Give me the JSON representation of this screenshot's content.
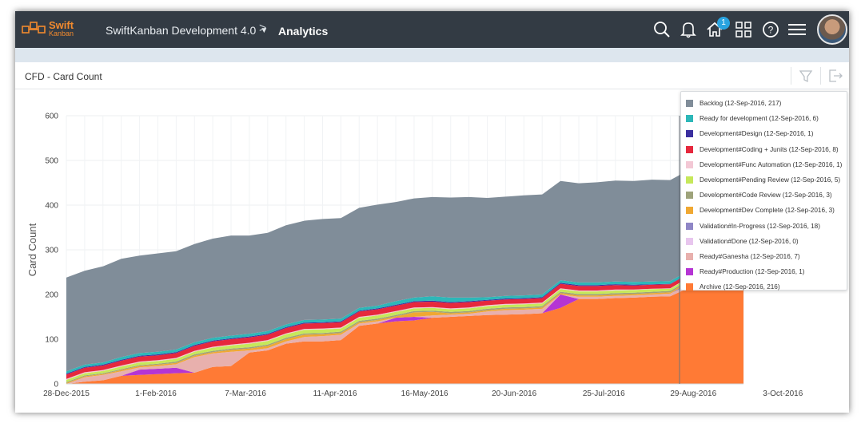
{
  "header": {
    "logo_line1": "Swift",
    "logo_line2": "Kanban",
    "project": "SwiftKanban Development 4.0",
    "separator": ">",
    "breadcrumb": "Analytics",
    "notification_count": "1",
    "icons": [
      "search-icon",
      "bell-icon",
      "home-icon",
      "grid-icon",
      "help-icon",
      "menu-icon"
    ]
  },
  "panel": {
    "title": "CFD - Card Count",
    "actions": [
      "filter-icon",
      "export-icon"
    ]
  },
  "colors": {
    "topbar": "#333b44",
    "accent": "#f28a2e",
    "badge": "#29a3e0"
  },
  "legend": [
    {
      "label": "Backlog (12-Sep-2016, 217)",
      "color": "#808d99"
    },
    {
      "label": "Ready for development (12-Sep-2016, 6)",
      "color": "#2db7b8"
    },
    {
      "label": "Development#Design (12-Sep-2016, 1)",
      "color": "#3b2f9f"
    },
    {
      "label": "Development#Coding + Junits (12-Sep-2016, 8)",
      "color": "#e6283d"
    },
    {
      "label": "Development#Func Automation (12-Sep-2016, 1)",
      "color": "#f3c8d5"
    },
    {
      "label": "Development#Pending Review (12-Sep-2016, 5)",
      "color": "#c6e85a"
    },
    {
      "label": "Development#Code Review (12-Sep-2016, 3)",
      "color": "#9ea37b"
    },
    {
      "label": "Development#Dev Complete (12-Sep-2016, 3)",
      "color": "#f0a832"
    },
    {
      "label": "Validation#In-Progress (12-Sep-2016, 18)",
      "color": "#8f86c6"
    },
    {
      "label": "Validation#Done (12-Sep-2016, 0)",
      "color": "#e8c6ee"
    },
    {
      "label": "Ready#Ganesha (12-Sep-2016, 7)",
      "color": "#e8b0ad"
    },
    {
      "label": "Ready#Production (12-Sep-2016, 1)",
      "color": "#b535d4"
    },
    {
      "label": "Archive (12-Sep-2016, 216)",
      "color": "#ff7a35"
    }
  ],
  "chart_data": {
    "type": "area",
    "title": "CFD - Card Count",
    "ylabel": "Card Count",
    "xlabel": "",
    "ylim": [
      0,
      600
    ],
    "yticks": [
      "0",
      "100",
      "200",
      "300",
      "400",
      "500",
      "600"
    ],
    "xticks": [
      "28-Dec-2015",
      "1-Feb-2016",
      "7-Mar-2016",
      "11-Apr-2016",
      "16-May-2016",
      "20-Jun-2016",
      "25-Jul-2016",
      "29-Aug-2016",
      "3-Oct-2016"
    ],
    "x_weeks": [
      0,
      1,
      2,
      3,
      4,
      5,
      6,
      7,
      8,
      9,
      10,
      11,
      12,
      13,
      14,
      15,
      16,
      17,
      18,
      19,
      20,
      21,
      22,
      23,
      24,
      25,
      26,
      27,
      28,
      29,
      30,
      31,
      32,
      33,
      34,
      35,
      36,
      37
    ],
    "series": [
      {
        "name": "Archive",
        "values": [
          0,
          5,
          8,
          18,
          20,
          22,
          24,
          25,
          38,
          40,
          70,
          75,
          90,
          95,
          95,
          98,
          130,
          135,
          140,
          142,
          148,
          150,
          152,
          154,
          155,
          156,
          158,
          170,
          190,
          190,
          192,
          193,
          195,
          196,
          215,
          216,
          216,
          216
        ]
      },
      {
        "name": "Ready#Production",
        "values": [
          0,
          0,
          0,
          0,
          12,
          12,
          12,
          0,
          0,
          0,
          0,
          0,
          0,
          0,
          0,
          0,
          0,
          0,
          8,
          8,
          0,
          0,
          0,
          0,
          0,
          0,
          0,
          30,
          0,
          0,
          0,
          0,
          0,
          0,
          0,
          0,
          1,
          1
        ]
      },
      {
        "name": "Ready#Ganesha",
        "values": [
          0,
          10,
          12,
          10,
          5,
          6,
          8,
          35,
          30,
          32,
          5,
          5,
          5,
          10,
          12,
          12,
          5,
          5,
          0,
          0,
          5,
          5,
          5,
          8,
          10,
          10,
          10,
          0,
          5,
          5,
          5,
          5,
          5,
          6,
          6,
          7,
          7,
          7
        ]
      },
      {
        "name": "Validation#Done",
        "values": [
          0,
          0,
          0,
          0,
          0,
          0,
          0,
          0,
          0,
          0,
          0,
          0,
          0,
          0,
          0,
          0,
          0,
          0,
          0,
          0,
          0,
          0,
          0,
          0,
          0,
          0,
          0,
          0,
          0,
          0,
          0,
          0,
          0,
          0,
          0,
          0,
          0,
          0
        ]
      },
      {
        "name": "Validation#In-Progress",
        "values": [
          0,
          0,
          0,
          0,
          0,
          0,
          0,
          0,
          0,
          0,
          0,
          0,
          0,
          0,
          0,
          0,
          0,
          0,
          0,
          0,
          0,
          0,
          0,
          0,
          0,
          0,
          0,
          0,
          0,
          0,
          0,
          0,
          0,
          0,
          5,
          10,
          15,
          18
        ]
      },
      {
        "name": "Development#Dev Complete",
        "values": [
          2,
          2,
          2,
          3,
          3,
          3,
          3,
          3,
          3,
          4,
          4,
          5,
          5,
          5,
          4,
          4,
          3,
          3,
          3,
          10,
          8,
          3,
          3,
          3,
          3,
          3,
          3,
          3,
          3,
          3,
          3,
          3,
          3,
          3,
          3,
          3,
          3,
          3
        ]
      },
      {
        "name": "Development#Code Review",
        "values": [
          2,
          2,
          2,
          2,
          2,
          2,
          3,
          3,
          3,
          3,
          3,
          3,
          3,
          3,
          3,
          3,
          3,
          3,
          3,
          3,
          3,
          3,
          3,
          3,
          3,
          3,
          3,
          3,
          3,
          3,
          3,
          3,
          3,
          3,
          3,
          3,
          3,
          3
        ]
      },
      {
        "name": "Development#Pending Review",
        "values": [
          5,
          5,
          5,
          6,
          6,
          6,
          6,
          6,
          7,
          7,
          8,
          8,
          8,
          8,
          8,
          7,
          7,
          7,
          7,
          6,
          6,
          6,
          6,
          6,
          6,
          6,
          6,
          6,
          6,
          6,
          6,
          6,
          6,
          5,
          5,
          5,
          5,
          5
        ]
      },
      {
        "name": "Development#Func Automation",
        "values": [
          2,
          2,
          2,
          2,
          2,
          2,
          2,
          2,
          2,
          2,
          2,
          2,
          2,
          2,
          2,
          2,
          2,
          2,
          2,
          2,
          2,
          2,
          2,
          2,
          2,
          2,
          2,
          2,
          2,
          2,
          2,
          1,
          1,
          1,
          1,
          1,
          1,
          1
        ]
      },
      {
        "name": "Development#Coding + Junits",
        "values": [
          10,
          10,
          10,
          11,
          11,
          11,
          11,
          11,
          12,
          12,
          12,
          12,
          12,
          12,
          12,
          12,
          12,
          12,
          12,
          12,
          12,
          12,
          12,
          10,
          10,
          10,
          10,
          10,
          10,
          10,
          10,
          9,
          9,
          9,
          8,
          8,
          8,
          8
        ]
      },
      {
        "name": "Development#Design",
        "values": [
          2,
          2,
          2,
          2,
          2,
          2,
          2,
          2,
          2,
          2,
          2,
          2,
          2,
          2,
          2,
          2,
          2,
          2,
          2,
          2,
          2,
          2,
          2,
          2,
          2,
          2,
          2,
          2,
          2,
          2,
          2,
          2,
          1,
          1,
          1,
          1,
          1,
          1
        ]
      },
      {
        "name": "Ready for development",
        "values": [
          5,
          5,
          5,
          6,
          6,
          6,
          6,
          6,
          6,
          6,
          6,
          6,
          6,
          6,
          6,
          6,
          6,
          6,
          8,
          8,
          10,
          10,
          8,
          6,
          6,
          6,
          6,
          6,
          6,
          6,
          6,
          6,
          6,
          6,
          6,
          6,
          6,
          6
        ]
      },
      {
        "name": "Backlog",
        "values": [
          210,
          210,
          215,
          220,
          218,
          220,
          220,
          220,
          222,
          224,
          220,
          220,
          222,
          222,
          225,
          225,
          224,
          226,
          222,
          222,
          222,
          224,
          225,
          222,
          222,
          224,
          224,
          222,
          222,
          224,
          226,
          226,
          228,
          226,
          225,
          222,
          220,
          217
        ]
      }
    ]
  }
}
